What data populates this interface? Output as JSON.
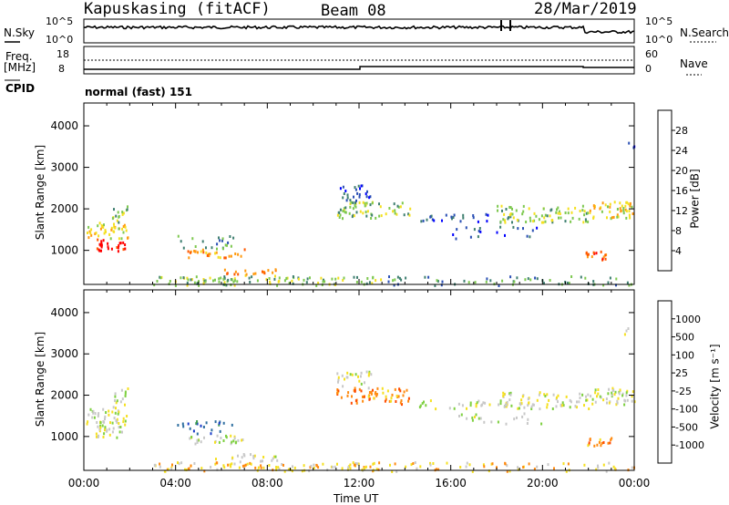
{
  "header": {
    "station": "Kapuskasing (fitACF)",
    "beam": "Beam 08",
    "date": "28/Mar/2019"
  },
  "sky_panel": {
    "left_label": "N.Sky",
    "right_label": "N.Search",
    "ticks_left": [
      "10^5",
      "10^0"
    ],
    "ticks_right": [
      "10^5",
      "10^0"
    ]
  },
  "freq_panel": {
    "left_label_1": "Freq.",
    "left_label_2": "[MHz]",
    "right_label": "Nave",
    "left_ticks": [
      "18",
      "8"
    ],
    "right_ticks": [
      "60",
      "0"
    ],
    "cpid_label": "CPID",
    "cpid_value": "normal (fast) 151"
  },
  "chart_data": [
    {
      "type": "heatmap",
      "name": "power-panel",
      "ylabel": "Slant Range [km]",
      "y_ticks": [
        "1000",
        "2000",
        "3000",
        "4000"
      ],
      "ylim": [
        180,
        4550
      ],
      "colorbar": {
        "label": "Power [dB]",
        "ticks": [
          "4",
          "8",
          "12",
          "16",
          "20",
          "24",
          "28"
        ],
        "colors": [
          "#0000ff",
          "#2a4fb4",
          "#3f7f70",
          "#7ec850",
          "#f4e020",
          "#ff9a10",
          "#ff5a00",
          "#ff0000"
        ]
      }
    },
    {
      "type": "heatmap",
      "name": "velocity-panel",
      "ylabel": "Slant Range [km]",
      "xlabel": "Time UT",
      "x_ticks": [
        "00:00",
        "04:00",
        "08:00",
        "12:00",
        "16:00",
        "20:00",
        "00:00"
      ],
      "y_ticks": [
        "1000",
        "2000",
        "3000",
        "4000"
      ],
      "ylim": [
        180,
        4550
      ],
      "colorbar": {
        "label": "Velocity [m s⁻¹]",
        "ticks": [
          "1000",
          "500",
          "100",
          "25",
          "-25",
          "-100",
          "-500",
          "-1000"
        ],
        "colors": [
          "#1a3cc8",
          "#2f6fa0",
          "#3a9a50",
          "#7ed040",
          "#c8c8c8",
          "#f5e020",
          "#ff8a10",
          "#ff4a00",
          "#ff0000"
        ]
      }
    }
  ]
}
